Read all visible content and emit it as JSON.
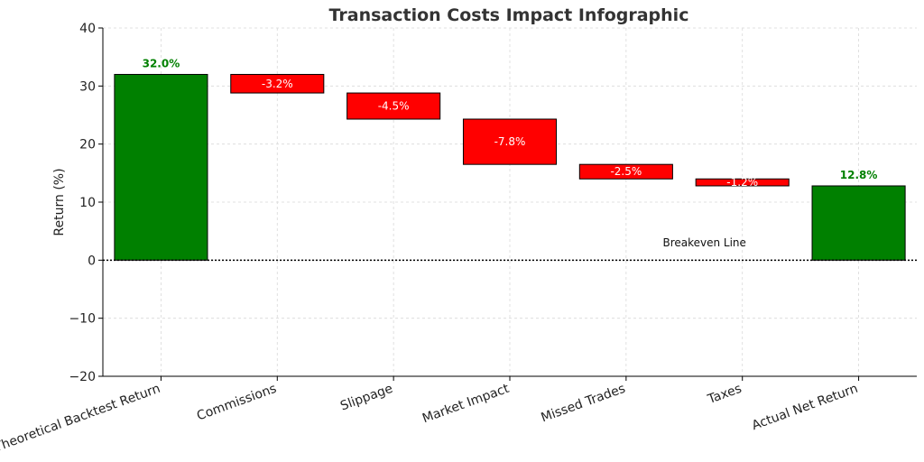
{
  "chart_data": {
    "type": "bar",
    "subtype": "waterfall",
    "title": "Transaction Costs Impact Infographic",
    "xlabel": "",
    "ylabel": "Return (%)",
    "ylim": [
      -20,
      40
    ],
    "yticks": [
      -20,
      -10,
      0,
      10,
      20,
      30,
      40
    ],
    "grid": true,
    "categories": [
      "Theoretical Backtest Return",
      "Commissions",
      "Slippage",
      "Market Impact",
      "Missed Trades",
      "Taxes",
      "Actual Net Return"
    ],
    "values": [
      32.0,
      -3.2,
      -4.5,
      -7.8,
      -2.5,
      -1.2,
      12.8
    ],
    "kinds": [
      "total",
      "delta",
      "delta",
      "delta",
      "delta",
      "delta",
      "total"
    ],
    "value_labels": [
      "32.0%",
      "-3.2%",
      "-4.5%",
      "-7.8%",
      "-2.5%",
      "-1.2%",
      "12.8%"
    ],
    "colors": {
      "total": "#008000",
      "delta": "#ff0000"
    },
    "reference_line": {
      "value": 0,
      "label": "Breakeven Line"
    }
  }
}
